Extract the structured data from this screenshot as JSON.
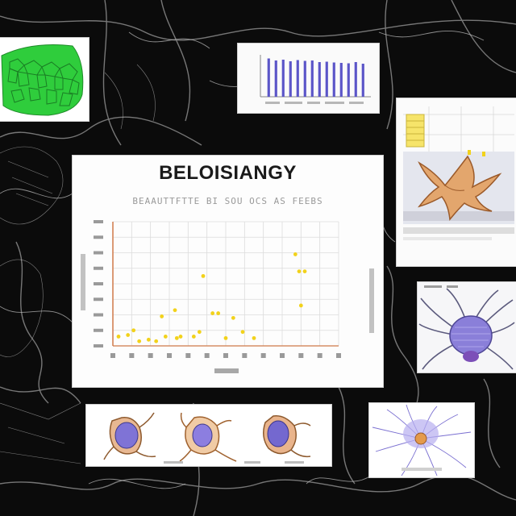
{
  "poster": {
    "title": "BELOISIANGY",
    "subtitle": "BEAAUTTFTTE BI SOU OCS AS FEEBS"
  },
  "chart_data": {
    "type": "scatter",
    "title": "BELOISIANGY",
    "subtitle": "BEAAUTTFTTE BI SOU OCS AS FEEBS",
    "xlabel": "",
    "ylabel": "",
    "grid": true,
    "color": "#f2d21b",
    "ylim": [
      0,
      8
    ],
    "xlim": [
      0,
      12
    ],
    "points": [
      {
        "x": 0.3,
        "y": 0.6
      },
      {
        "x": 0.8,
        "y": 0.7
      },
      {
        "x": 1.1,
        "y": 1.0
      },
      {
        "x": 1.4,
        "y": 0.3
      },
      {
        "x": 1.9,
        "y": 0.4
      },
      {
        "x": 2.3,
        "y": 0.3
      },
      {
        "x": 2.6,
        "y": 1.9
      },
      {
        "x": 2.8,
        "y": 0.6
      },
      {
        "x": 3.3,
        "y": 2.3
      },
      {
        "x": 3.4,
        "y": 0.5
      },
      {
        "x": 3.6,
        "y": 0.6
      },
      {
        "x": 4.3,
        "y": 0.6
      },
      {
        "x": 4.6,
        "y": 0.9
      },
      {
        "x": 4.8,
        "y": 4.5
      },
      {
        "x": 5.3,
        "y": 2.1
      },
      {
        "x": 5.6,
        "y": 2.1
      },
      {
        "x": 6.0,
        "y": 0.5
      },
      {
        "x": 6.4,
        "y": 1.8
      },
      {
        "x": 6.9,
        "y": 0.9
      },
      {
        "x": 7.5,
        "y": 0.5
      },
      {
        "x": 9.7,
        "y": 5.9
      },
      {
        "x": 9.9,
        "y": 4.8
      },
      {
        "x": 10.0,
        "y": 2.6
      },
      {
        "x": 10.2,
        "y": 4.8
      }
    ]
  },
  "top_chart": {
    "type": "bar",
    "color": "#5b55c8",
    "values": [
      9.5,
      9.0,
      9.2,
      8.8,
      9.1,
      8.9,
      9.0,
      8.6,
      8.7,
      8.5,
      8.4,
      8.3,
      8.6,
      8.2
    ]
  },
  "colors": {
    "background": "#0a0a0a",
    "accent_yellow": "#f2d21b",
    "accent_green": "#27c93f",
    "accent_purple": "#6c5ccf",
    "accent_orange": "#d2874a"
  },
  "icons": [
    "cell-tissue-icon",
    "spider-anatomy-icon",
    "neuron-icon",
    "organ-icon"
  ]
}
